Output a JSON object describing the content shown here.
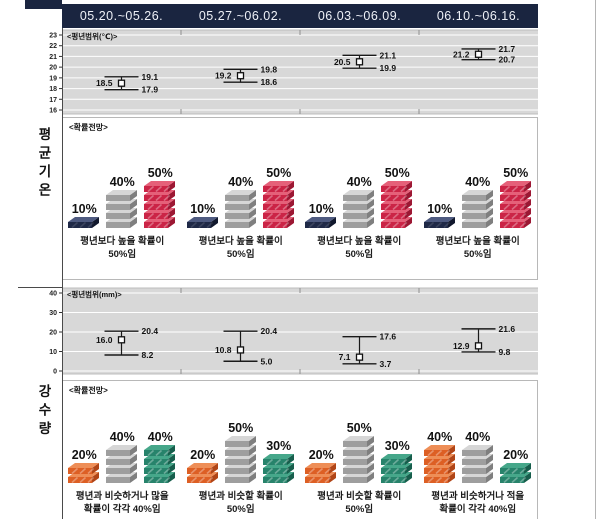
{
  "header": {
    "periods": [
      "05.20.~05.26.",
      "05.27.~06.02.",
      "06.03.~06.09.",
      "06.10.~06.16."
    ]
  },
  "sidebar": {
    "temp_label": "평균기온",
    "precip_label": "강수량"
  },
  "colors": {
    "header_bg": "#1a2540",
    "chart_bg": "#d8d8d8",
    "below_temp": "#1f2947",
    "similar": "#9e9e9e",
    "above_temp": "#cb2446",
    "below_precip": "#dd5f24",
    "above_precip": "#27836b"
  },
  "chart_data": [
    {
      "type": "line",
      "id": "temp-range",
      "display_title": "<평년범위(℃)>",
      "section": "평균기온",
      "categories": [
        "05.20.~05.26.",
        "05.27.~06.02.",
        "06.03.~06.09.",
        "06.10.~06.16."
      ],
      "series": [
        {
          "name": "전망값",
          "values": [
            18.5,
            19.2,
            20.5,
            21.2
          ]
        },
        {
          "name": "평년범위 상한",
          "values": [
            19.1,
            19.8,
            21.1,
            21.7
          ]
        },
        {
          "name": "평년범위 하한",
          "values": [
            17.9,
            18.6,
            19.9,
            20.7
          ]
        }
      ],
      "ylim": [
        16,
        23
      ],
      "ytick_step": 1,
      "unit": "℃",
      "grid": "on"
    },
    {
      "type": "line",
      "id": "precip-range",
      "display_title": "<평년범위(mm)>",
      "section": "강수량",
      "categories": [
        "05.20.~05.26.",
        "05.27.~06.02.",
        "06.03.~06.09.",
        "06.10.~06.16."
      ],
      "series": [
        {
          "name": "전망값",
          "values": [
            16.0,
            10.8,
            7.1,
            12.9
          ]
        },
        {
          "name": "평년범위 상한",
          "values": [
            20.4,
            20.4,
            17.6,
            21.6
          ]
        },
        {
          "name": "평년범위 하한",
          "values": [
            8.2,
            5.0,
            3.7,
            9.8
          ]
        }
      ],
      "ylim": [
        0,
        40
      ],
      "ytick_step": 10,
      "unit": "mm",
      "grid": "on"
    },
    {
      "type": "bar",
      "id": "temp-prob",
      "display_title": "<확률전망>",
      "section": "평균기온",
      "categories": [
        "05.20.~05.26.",
        "05.27.~06.02.",
        "06.03.~06.09.",
        "06.10.~06.16."
      ],
      "series": [
        {
          "name": "평년보다 낮을 확률",
          "color_key": "navy",
          "values": [
            10,
            10,
            10,
            10
          ]
        },
        {
          "name": "평년과 비슷할 확률",
          "color_key": "gray",
          "values": [
            40,
            40,
            40,
            40
          ]
        },
        {
          "name": "평년보다 높을 확률",
          "color_key": "red",
          "values": [
            50,
            50,
            50,
            50
          ]
        }
      ],
      "unit": "%",
      "captions": [
        [
          "평년보다 높을 확률이",
          "50%임"
        ],
        [
          "평년보다 높을 확률이",
          "50%임"
        ],
        [
          "평년보다 높을 확률이",
          "50%임"
        ],
        [
          "평년보다 높을 확률이",
          "50%임"
        ]
      ]
    },
    {
      "type": "bar",
      "id": "precip-prob",
      "display_title": "<확률전망>",
      "section": "강수량",
      "categories": [
        "05.20.~05.26.",
        "05.27.~06.02.",
        "06.03.~06.09.",
        "06.10.~06.16."
      ],
      "series": [
        {
          "name": "평년보다 적을 확률",
          "color_key": "orange",
          "values": [
            20,
            20,
            20,
            40
          ]
        },
        {
          "name": "평년과 비슷할 확률",
          "color_key": "gray",
          "values": [
            40,
            50,
            50,
            40
          ]
        },
        {
          "name": "평년보다 많을 확률",
          "color_key": "green",
          "values": [
            40,
            30,
            30,
            20
          ]
        }
      ],
      "unit": "%",
      "captions": [
        [
          "평년과 비슷하거나 많을",
          "확률이 각각 40%임"
        ],
        [
          "평년과 비슷할 확률이",
          "50%임"
        ],
        [
          "평년과 비슷할 확률이",
          "50%임"
        ],
        [
          "평년과 비슷하거나 적을",
          "확률이 각각 40%임"
        ]
      ]
    }
  ]
}
